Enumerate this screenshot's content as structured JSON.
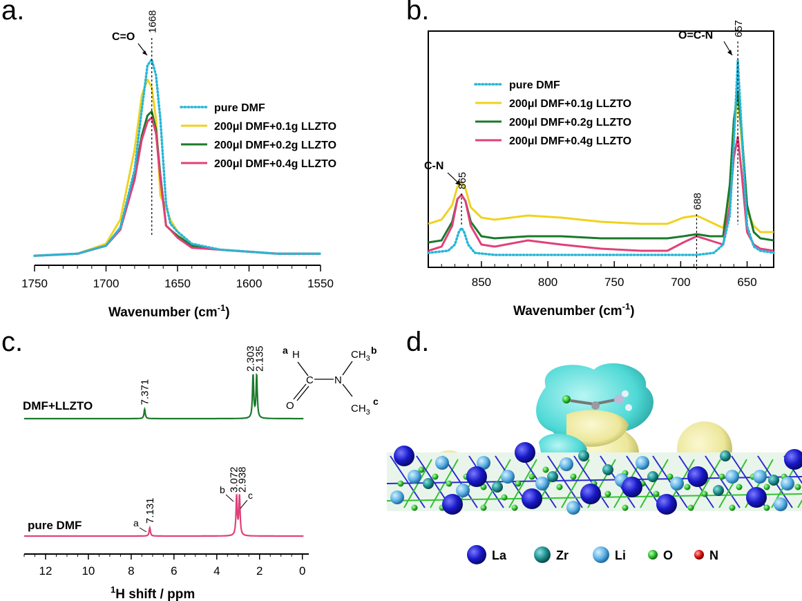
{
  "panels": {
    "a": {
      "label": "a.",
      "xlabel": "Wavenumber (cm",
      "xlabel_sup": "-1",
      "xlabel_end": ")",
      "xlim": [
        1750,
        1550
      ],
      "xticks": [
        1750,
        1700,
        1650,
        1600,
        1550
      ],
      "peak_marker": {
        "x": 1668,
        "label": "1668",
        "annotation": "C=O"
      },
      "legend": [
        "pure DMF",
        "200μl DMF+0.1g LLZTO",
        "200μl DMF+0.2g LLZTO",
        "200μl DMF+0.4g LLZTO"
      ]
    },
    "b": {
      "label": "b.",
      "xlabel": "Wavenumber (cm",
      "xlabel_sup": "-1",
      "xlabel_end": ")",
      "xlim": [
        890,
        630
      ],
      "xticks": [
        850,
        800,
        750,
        700,
        650
      ],
      "peak_markers": [
        {
          "x": 865,
          "label": "865",
          "annotation": "C-N"
        },
        {
          "x": 688,
          "label": "688",
          "annotation": ""
        },
        {
          "x": 657,
          "label": "657",
          "annotation": "O=C-N"
        }
      ],
      "legend": [
        "pure DMF",
        "200μl DMF+0.1g LLZTO",
        "200μl DMF+0.2g LLZTO",
        "200μl DMF+0.4g LLZTO"
      ]
    },
    "c": {
      "label": "c.",
      "xlabel_sup": "1",
      "xlabel": "H shift / ppm",
      "xlim": [
        13,
        -0.3
      ],
      "xticks": [
        12,
        10,
        8,
        6,
        4,
        2,
        0
      ],
      "spectra": [
        {
          "name": "DMF+LLZTO",
          "peaks": [
            {
              "x": 7.371,
              "label": "7.371"
            },
            {
              "x": 2.303,
              "label": "2.303"
            },
            {
              "x": 2.135,
              "label": "2.135"
            }
          ]
        },
        {
          "name": "pure DMF",
          "peaks": [
            {
              "x": 7.131,
              "label": "7.131",
              "tag": "a"
            },
            {
              "x": 3.072,
              "label": "3.072",
              "tag": "b"
            },
            {
              "x": 2.938,
              "label": "2.938",
              "tag": "c"
            }
          ]
        }
      ],
      "structure": {
        "a": "a",
        "H": "H",
        "C": "C",
        "O": "O",
        "N": "N",
        "CH3": "CH",
        "sub3": "3",
        "b": "b",
        "c": "c"
      }
    },
    "d": {
      "label": "d.",
      "legend": [
        {
          "name": "La",
          "color": "#1a1ad0"
        },
        {
          "name": "Zr",
          "color": "#1e8f8f"
        },
        {
          "name": "Li",
          "color": "#5fb3e6"
        },
        {
          "name": "O",
          "color": "#2fbf2f"
        },
        {
          "name": "N",
          "color": "#e01010"
        }
      ]
    }
  },
  "colors": {
    "pure": "#29b6d8",
    "s01": "#f0d21e",
    "s02": "#1a7a2a",
    "s04": "#e0407a",
    "cyan_lobe": "#4fd9d6",
    "yellow_lobe": "#ece79a"
  },
  "chart_data": [
    {
      "type": "line",
      "title": "",
      "xlabel": "Wavenumber (cm-1)",
      "ylabel": "",
      "xlim": [
        1750,
        1550
      ],
      "series": [
        {
          "name": "pure DMF",
          "style": "dotted",
          "x": [
            1750,
            1720,
            1700,
            1690,
            1680,
            1675,
            1671,
            1668,
            1665,
            1662,
            1658,
            1655,
            1650,
            1640,
            1620,
            1600,
            1580,
            1550
          ],
          "y": [
            0.02,
            0.03,
            0.07,
            0.16,
            0.45,
            0.75,
            0.97,
            1.0,
            0.92,
            0.7,
            0.28,
            0.18,
            0.14,
            0.08,
            0.05,
            0.04,
            0.03,
            0.03
          ]
        },
        {
          "name": "200μl DMF+0.1g LLZTO",
          "style": "solid",
          "x": [
            1750,
            1720,
            1700,
            1690,
            1680,
            1675,
            1671,
            1668,
            1665,
            1662,
            1658,
            1655,
            1650,
            1640,
            1620,
            1600,
            1580,
            1550
          ],
          "y": [
            0.02,
            0.03,
            0.08,
            0.2,
            0.55,
            0.82,
            0.9,
            0.86,
            0.7,
            0.32,
            0.26,
            0.2,
            0.14,
            0.07,
            0.05,
            0.04,
            0.03,
            0.03
          ]
        },
        {
          "name": "200μl DMF+0.2g LLZTO",
          "style": "solid",
          "x": [
            1750,
            1720,
            1700,
            1690,
            1680,
            1675,
            1671,
            1668,
            1665,
            1662,
            1658,
            1655,
            1650,
            1640,
            1620,
            1600,
            1580,
            1550
          ],
          "y": [
            0.02,
            0.03,
            0.07,
            0.16,
            0.42,
            0.62,
            0.72,
            0.74,
            0.65,
            0.42,
            0.17,
            0.15,
            0.12,
            0.07,
            0.05,
            0.04,
            0.03,
            0.03
          ]
        },
        {
          "name": "200μl DMF+0.4g LLZTO",
          "style": "solid",
          "x": [
            1750,
            1720,
            1700,
            1690,
            1680,
            1675,
            1671,
            1668,
            1665,
            1662,
            1658,
            1655,
            1650,
            1640,
            1620,
            1600,
            1580,
            1550
          ],
          "y": [
            0.02,
            0.03,
            0.07,
            0.15,
            0.4,
            0.6,
            0.69,
            0.71,
            0.63,
            0.4,
            0.17,
            0.15,
            0.11,
            0.06,
            0.05,
            0.04,
            0.03,
            0.03
          ]
        }
      ]
    },
    {
      "type": "line",
      "title": "",
      "xlabel": "Wavenumber (cm-1)",
      "ylabel": "",
      "xlim": [
        890,
        630
      ],
      "series": [
        {
          "name": "pure DMF",
          "style": "dotted",
          "x": [
            890,
            875,
            870,
            867,
            865,
            863,
            860,
            855,
            840,
            800,
            750,
            700,
            688,
            675,
            668,
            663,
            660,
            657,
            654,
            650,
            645,
            640,
            630
          ],
          "y": [
            0.02,
            0.03,
            0.06,
            0.12,
            0.14,
            0.12,
            0.06,
            0.02,
            0.01,
            0.01,
            0.01,
            0.01,
            0.01,
            0.02,
            0.06,
            0.2,
            0.55,
            0.95,
            0.6,
            0.15,
            0.05,
            0.03,
            0.02
          ]
        },
        {
          "name": "200μl DMF+0.1g LLZTO",
          "style": "solid",
          "x": [
            890,
            880,
            872,
            868,
            865,
            862,
            858,
            850,
            840,
            815,
            790,
            760,
            730,
            710,
            698,
            688,
            678,
            668,
            663,
            660,
            657,
            654,
            650,
            645,
            640,
            630
          ],
          "y": [
            0.16,
            0.18,
            0.25,
            0.34,
            0.36,
            0.33,
            0.24,
            0.19,
            0.18,
            0.2,
            0.19,
            0.17,
            0.16,
            0.16,
            0.19,
            0.2,
            0.17,
            0.14,
            0.3,
            0.6,
            0.78,
            0.55,
            0.22,
            0.15,
            0.12,
            0.12
          ]
        },
        {
          "name": "200μl DMF+0.2g LLZTO",
          "style": "solid",
          "x": [
            890,
            880,
            872,
            868,
            865,
            862,
            858,
            850,
            840,
            815,
            790,
            760,
            730,
            710,
            698,
            688,
            678,
            668,
            663,
            660,
            657,
            654,
            650,
            645,
            640,
            630
          ],
          "y": [
            0.07,
            0.08,
            0.17,
            0.28,
            0.3,
            0.27,
            0.17,
            0.1,
            0.09,
            0.1,
            0.1,
            0.09,
            0.09,
            0.09,
            0.1,
            0.11,
            0.1,
            0.1,
            0.35,
            0.66,
            0.8,
            0.6,
            0.25,
            0.12,
            0.09,
            0.08
          ]
        },
        {
          "name": "200μl DMF+0.4g LLZTO",
          "style": "solid",
          "x": [
            890,
            880,
            872,
            868,
            865,
            862,
            858,
            850,
            840,
            815,
            790,
            760,
            730,
            710,
            698,
            688,
            678,
            668,
            663,
            660,
            657,
            654,
            650,
            645,
            640,
            630
          ],
          "y": [
            0.03,
            0.05,
            0.15,
            0.28,
            0.3,
            0.27,
            0.15,
            0.06,
            0.05,
            0.08,
            0.06,
            0.04,
            0.03,
            0.03,
            0.07,
            0.1,
            0.08,
            0.06,
            0.25,
            0.48,
            0.58,
            0.4,
            0.12,
            0.06,
            0.04,
            0.03
          ]
        }
      ]
    },
    {
      "type": "line",
      "title": "",
      "xlabel": "1H shift / ppm",
      "ylabel": "",
      "xlim": [
        13,
        -0.3
      ],
      "series": [
        {
          "name": "DMF+LLZTO",
          "peaks_ppm": [
            7.371,
            2.303,
            2.135
          ],
          "heights": [
            0.22,
            1.0,
            1.0
          ]
        },
        {
          "name": "pure DMF",
          "peaks_ppm": [
            7.131,
            3.072,
            2.938
          ],
          "heights": [
            0.2,
            0.95,
            0.95
          ]
        }
      ]
    }
  ]
}
